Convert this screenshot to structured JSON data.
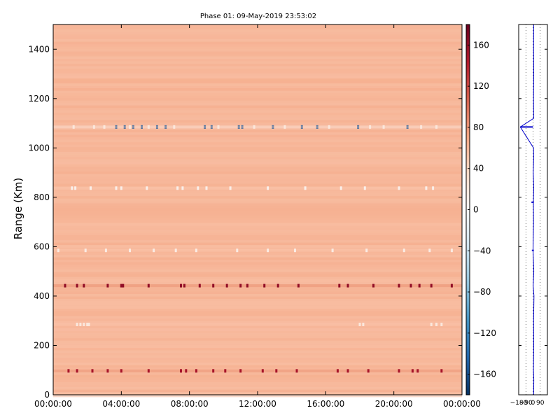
{
  "chart_data": [
    {
      "type": "heatmap",
      "title": "Phase 01: 09-May-2019 23:53:02",
      "xlabel": "",
      "ylabel": "Range (Km)",
      "x_ticks": [
        "00:00:00",
        "04:00:00",
        "08:00:00",
        "12:00:00",
        "16:00:00",
        "20:00:00",
        "00:00:00"
      ],
      "xlim_hours": [
        0,
        24
      ],
      "y_ticks": [
        0,
        200,
        400,
        600,
        800,
        1000,
        1200,
        1400
      ],
      "ylim": [
        0,
        1500
      ],
      "base_value": 60,
      "colorbar": {
        "colormap": "RdBu_r",
        "range": [
          -180,
          180
        ],
        "ticks": [
          160,
          120,
          80,
          40,
          0,
          -40,
          -80,
          -120,
          -160
        ],
        "tick_labels": [
          "160",
          "120",
          "80",
          "40",
          "0",
          "−40",
          "−80",
          "−120",
          "−160"
        ]
      },
      "features": [
        {
          "range_km": 1085,
          "value": -150,
          "hours": [
            3.7,
            4.2,
            4.7,
            5.2,
            6.1,
            6.6,
            8.9,
            9.3,
            10.9,
            11.1,
            12.9,
            14.6,
            15.5,
            17.9,
            20.8
          ]
        },
        {
          "range_km": 1085,
          "value": 20,
          "hours": [
            1.2,
            2.4,
            3.0,
            4.5,
            5.6,
            7.1,
            9.7,
            11.8,
            13.6,
            16.2,
            18.6,
            19.4,
            21.6,
            22.5
          ]
        },
        {
          "range_km": 837,
          "value": 10,
          "hours": [
            1.1,
            1.3,
            2.2,
            3.7,
            4.0,
            5.5,
            7.3,
            7.6,
            8.5,
            9.0,
            10.4,
            12.6,
            14.8,
            16.9,
            18.3,
            20.3,
            21.9,
            22.3
          ]
        },
        {
          "range_km": 585,
          "value": 15,
          "hours": [
            0.3,
            1.9,
            3.1,
            4.5,
            5.9,
            7.2,
            8.4,
            10.8,
            12.6,
            14.2,
            16.4,
            18.4,
            20.6,
            22.1,
            23.4
          ]
        },
        {
          "range_km": 442,
          "value": 160,
          "hours": [
            0.7,
            1.4,
            1.8,
            3.2,
            4.0,
            4.1,
            5.6,
            7.5,
            7.7,
            8.6,
            9.4,
            10.2,
            11.0,
            11.4,
            12.4,
            13.2,
            14.4,
            16.8,
            17.3,
            18.8,
            20.3,
            21.0,
            21.5,
            22.2,
            23.4
          ]
        },
        {
          "range_km": 97,
          "value": 150,
          "hours": [
            0.9,
            1.4,
            2.3,
            3.2,
            4.0,
            5.6,
            7.5,
            7.8,
            8.4,
            9.4,
            10.1,
            11.0,
            12.3,
            13.1,
            14.3,
            16.7,
            17.3,
            18.5,
            20.3,
            21.1,
            21.4,
            22.8
          ]
        },
        {
          "range_km": 285,
          "value": 20,
          "hours": [
            1.4,
            1.6,
            1.8,
            2.0,
            2.1,
            18.0,
            18.2,
            22.2,
            22.5,
            22.8
          ]
        }
      ]
    },
    {
      "type": "line",
      "x_ticks": [
        "−180",
        "−90",
        "0",
        "90"
      ],
      "xlim": [
        -180,
        180
      ],
      "ylim": [
        0,
        1500
      ],
      "series": [
        {
          "color": "#0000cc",
          "profile": [
            [
              0,
              8
            ],
            [
              60,
              10
            ],
            [
              100,
              5
            ],
            [
              200,
              9
            ],
            [
              300,
              7
            ],
            [
              400,
              11
            ],
            [
              442,
              2
            ],
            [
              500,
              10
            ],
            [
              585,
              0
            ],
            [
              700,
              6
            ],
            [
              780,
              4
            ],
            [
              840,
              9
            ],
            [
              900,
              3
            ],
            [
              960,
              8
            ],
            [
              1000,
              6
            ],
            [
              1085,
              -160
            ],
            [
              1120,
              8
            ],
            [
              1200,
              6
            ],
            [
              1300,
              9
            ],
            [
              1400,
              7
            ],
            [
              1500,
              8
            ]
          ]
        }
      ]
    }
  ]
}
